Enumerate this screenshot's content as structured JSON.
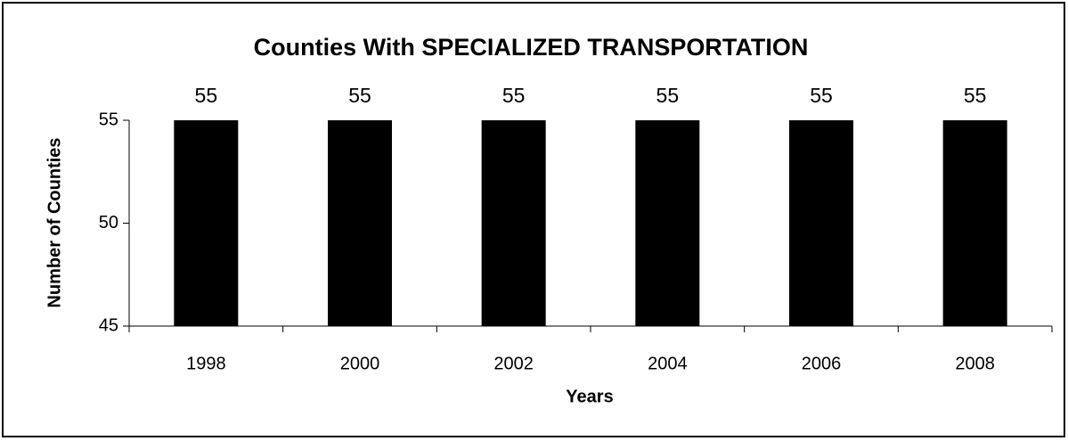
{
  "chart_data": {
    "type": "bar",
    "title": "Counties With SPECIALIZED TRANSPORTATION",
    "x_label": "Years",
    "y_label": "Number of Counties",
    "categories": [
      "1998",
      "2000",
      "2002",
      "2004",
      "2006",
      "2008"
    ],
    "values": [
      55,
      55,
      55,
      55,
      55,
      55
    ],
    "color": "#000000",
    "ylim": [
      45,
      55
    ],
    "yticks": [
      45,
      50,
      55
    ],
    "grid": false
  }
}
